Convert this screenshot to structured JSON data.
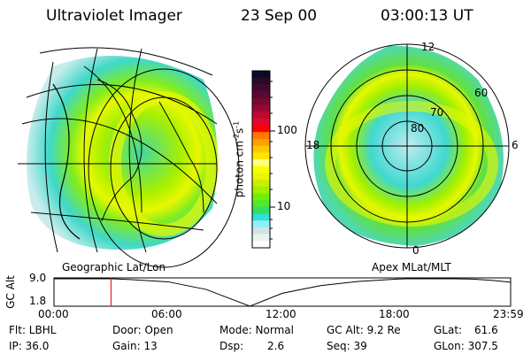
{
  "header": {
    "instrument": "Ultraviolet Imager",
    "date": "23 Sep 00",
    "time": "03:00:13 UT"
  },
  "left_panel": {
    "label": "Geographic Lat/Lon"
  },
  "right_panel": {
    "label": "Apex MLat/MLT",
    "mlt_labels": [
      "12",
      "6",
      "0",
      "18"
    ],
    "lat_labels": [
      "80",
      "70",
      "60"
    ]
  },
  "colorbar": {
    "unit_label": "photon cm",
    "unit_sup1": "-2",
    "unit_mid": "s",
    "unit_sup2": "-1",
    "tick_labels": [
      "100",
      "10"
    ],
    "colors": [
      "#0a0a2a",
      "#2a0a28",
      "#400a30",
      "#5a0830",
      "#7a0830",
      "#9a0830",
      "#c00830",
      "#e00830",
      "#ff0000",
      "#ff7800",
      "#ffa000",
      "#ffc800",
      "#ffe600",
      "#ffff80",
      "#f8ff00",
      "#e8f800",
      "#c8f000",
      "#a0f000",
      "#70f000",
      "#50e830",
      "#30e060",
      "#30e0d8",
      "#90f0f8",
      "#d0e4e4",
      "#e8f4ee",
      "#ffffff"
    ]
  },
  "chart_data": {
    "type": "line",
    "title": "",
    "ylabel": "GC Alt",
    "yticks": [
      "9.0",
      "1.8"
    ],
    "ylim": [
      1.8,
      9.0
    ],
    "xticks": [
      "00:00",
      "06:00",
      "12:00",
      "18:00",
      "23:59"
    ],
    "xlim_hours": [
      0,
      24
    ],
    "x_hours": [
      0,
      3,
      4,
      6,
      8,
      10.3,
      12,
      14,
      16,
      18,
      18.5,
      21,
      22,
      23,
      24
    ],
    "y_re": [
      9.0,
      9.0,
      8.8,
      8.2,
      6.2,
      1.8,
      5.2,
      7.2,
      8.3,
      8.9,
      9.0,
      9.0,
      8.9,
      8.6,
      8.1
    ],
    "current_time_hours": 3.0,
    "current_marker_color": "#ff0000"
  },
  "info": {
    "filter": "Flt: LBHL",
    "ip": "IP: 36.0",
    "door": "Door: Open",
    "gain": "Gain: 13",
    "mode": "Mode: Normal",
    "dsp_label": "Dsp:",
    "dsp_value": "2.6",
    "gc_alt": "GC Alt: 9.2 Re",
    "seq": "Seq: 39",
    "glat_label": "GLat:",
    "glat_value": "61.6",
    "glon": "GLon: 307.5"
  }
}
